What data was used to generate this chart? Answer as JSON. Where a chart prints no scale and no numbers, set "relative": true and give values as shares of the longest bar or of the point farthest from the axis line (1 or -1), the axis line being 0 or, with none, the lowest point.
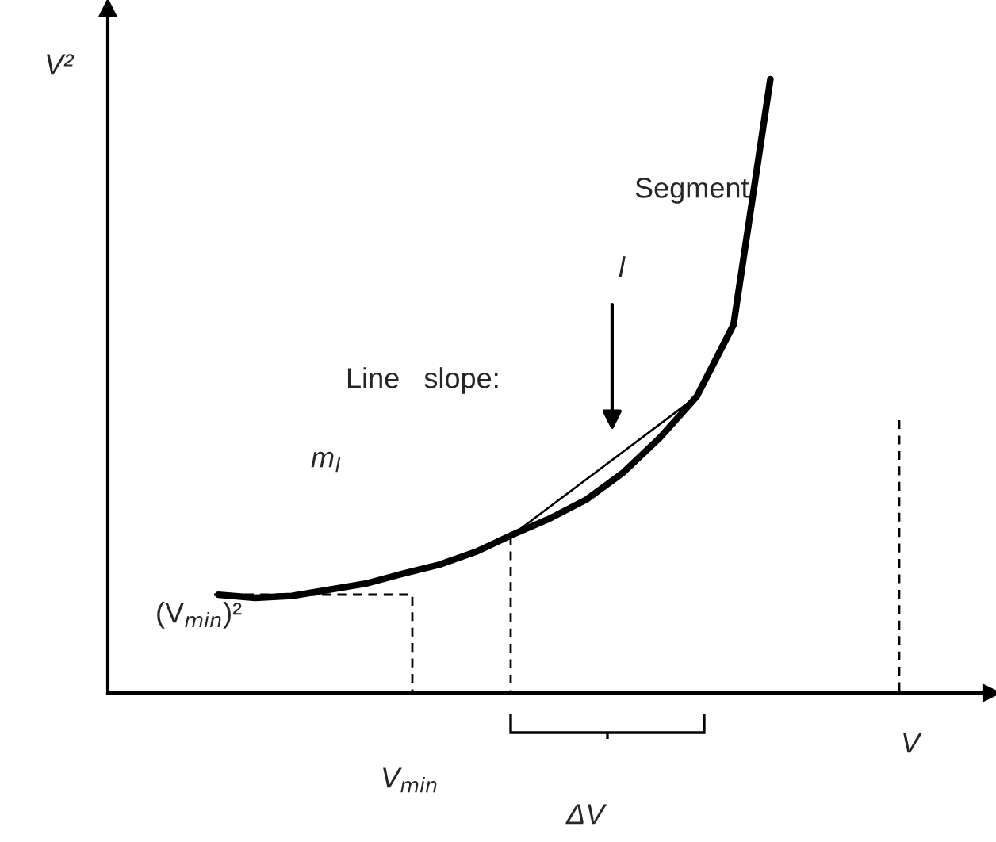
{
  "chart_data": {
    "type": "line",
    "relative": true,
    "categories": [
      null,
      null,
      null,
      null,
      null,
      null,
      null,
      null,
      null,
      null,
      null,
      null,
      null,
      null,
      null,
      null,
      null,
      null,
      null,
      null,
      null,
      null,
      null,
      null,
      null
    ],
    "series": [
      {
        "color": "#000000",
        "values": [
          null,
          null,
          null,
          0.16,
          0.155,
          0.158,
          0.168,
          0.178,
          0.194,
          0.209,
          0.23,
          0.258,
          0.284,
          0.315,
          0.359,
          0.416,
          0.483,
          0.6,
          1,
          null,
          null,
          null,
          null,
          null,
          null
        ]
      },
      {
        "color": "#000000",
        "values": [
          null,
          null,
          null,
          null,
          null,
          null,
          null,
          null,
          null,
          null,
          null,
          0.258,
          null,
          null,
          null,
          null,
          0.483,
          null,
          null,
          null,
          null,
          null,
          null,
          null,
          null
        ]
      }
    ],
    "annotations": [
      "V²",
      "Segment",
      "l",
      "Line   slope:",
      "m$_{l}$",
      "(V$_{min}$)²",
      "V$_{min}$",
      "ΔV",
      "V"
    ],
    "legend": false
  }
}
